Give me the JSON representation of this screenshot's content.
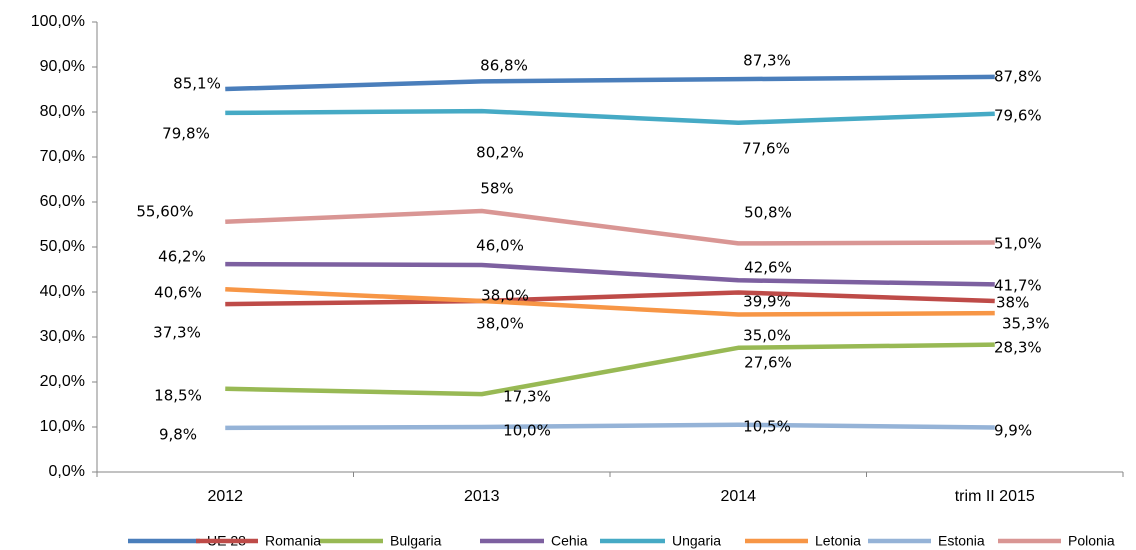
{
  "chart_data": {
    "type": "line",
    "categories": [
      "2012",
      "2013",
      "2014",
      "trim II 2015"
    ],
    "ylim": [
      0,
      100
    ],
    "yticks": [
      {
        "value": 0,
        "label": "0,0%"
      },
      {
        "value": 10,
        "label": "10,0%"
      },
      {
        "value": 20,
        "label": "20,0%"
      },
      {
        "value": 30,
        "label": "30,0%"
      },
      {
        "value": 40,
        "label": "40,0%"
      },
      {
        "value": 50,
        "label": "50,0%"
      },
      {
        "value": 60,
        "label": "60,0%"
      },
      {
        "value": 70,
        "label": "70,0%"
      },
      {
        "value": 80,
        "label": "80,0%"
      },
      {
        "value": 90,
        "label": "90,0%"
      },
      {
        "value": 100,
        "label": "100,0%"
      }
    ],
    "legend": "bottom",
    "series": [
      {
        "name": "UE 28",
        "color": "#4a7ebb",
        "values": [
          85.1,
          86.8,
          87.3,
          87.8
        ],
        "value_labels": [
          "85,1%",
          "86,8%",
          "87,3%",
          "87,8%"
        ]
      },
      {
        "name": "Romania",
        "color": "#be4b48",
        "values": [
          37.3,
          38.0,
          39.9,
          38
        ],
        "value_labels": [
          "37,3%",
          "38,0%",
          "39,9%",
          "38%"
        ]
      },
      {
        "name": "Bulgaria",
        "color": "#98b954",
        "values": [
          18.5,
          17.3,
          27.6,
          28.3
        ],
        "value_labels": [
          "18,5%",
          "17,3%",
          "27,6%",
          "28,3%"
        ]
      },
      {
        "name": "Cehia",
        "color": "#7d60a0",
        "values": [
          46.2,
          46.0,
          42.6,
          41.7
        ],
        "value_labels": [
          "46,2%",
          "46,0%",
          "42,6%",
          "41,7%"
        ]
      },
      {
        "name": "Ungaria",
        "color": "#46aac5",
        "values": [
          79.8,
          80.2,
          77.6,
          79.6
        ],
        "value_labels": [
          "79,8%",
          "80,2%",
          "77,6%",
          "79,6%"
        ]
      },
      {
        "name": "Letonia",
        "color": "#f79646",
        "values": [
          40.6,
          38.0,
          35.0,
          35.3
        ],
        "value_labels": [
          "40,6%",
          "38,0%",
          "35,0%",
          "35,3%"
        ]
      },
      {
        "name": "Estonia",
        "color": "#95b3d7",
        "values": [
          9.8,
          10.0,
          10.5,
          9.9
        ],
        "value_labels": [
          "9,8%",
          "10,0%",
          "10,5%",
          "9,9%"
        ]
      },
      {
        "name": "Polonia",
        "color": "#d99694",
        "values": [
          55.6,
          58,
          50.8,
          51.0
        ],
        "value_labels": [
          "55,60%",
          "58%",
          "50,8%",
          "51,0%"
        ]
      }
    ]
  }
}
